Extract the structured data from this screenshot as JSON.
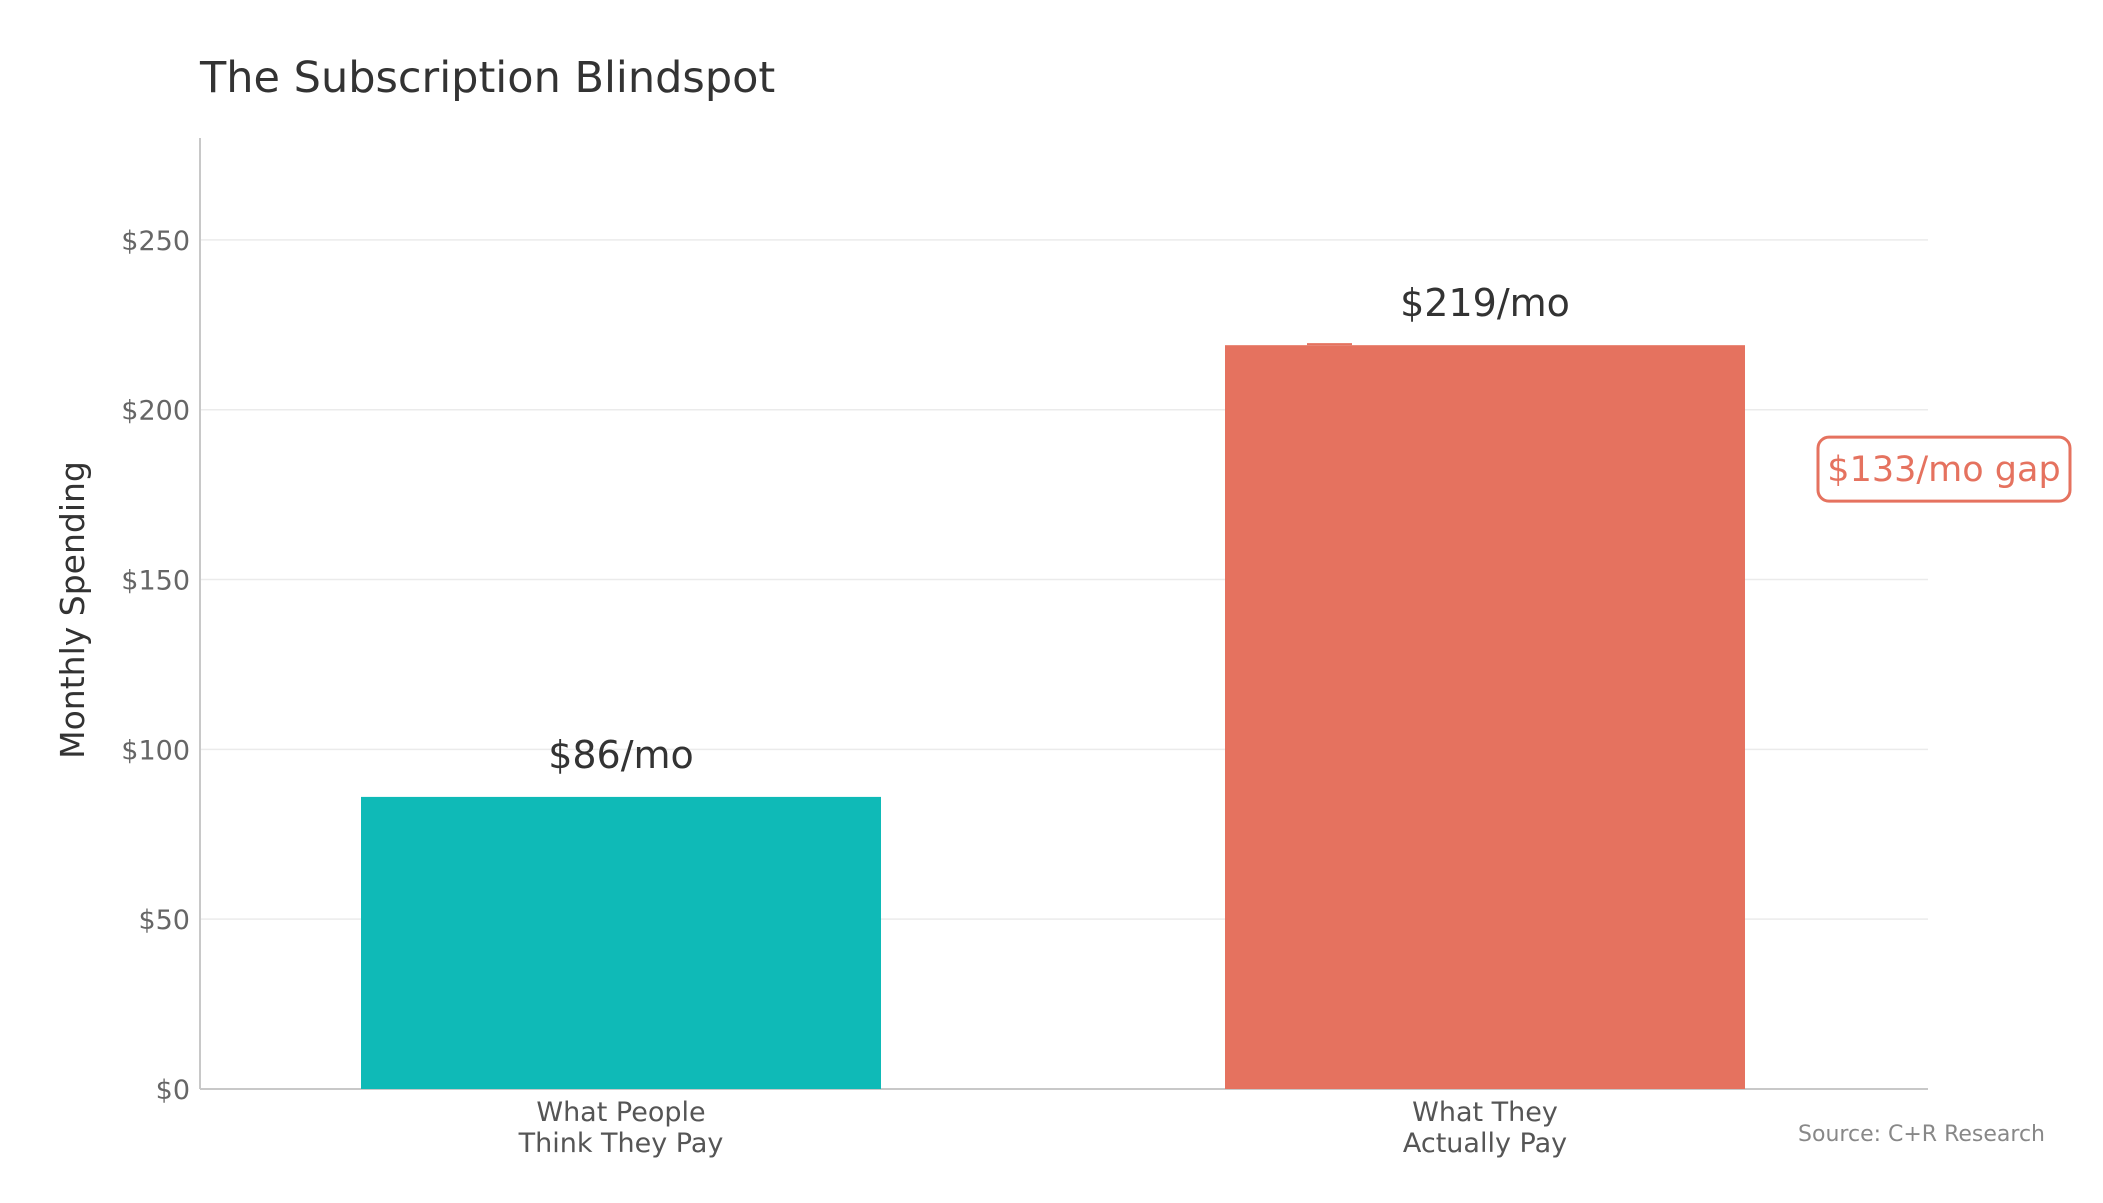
{
  "chart_data": {
    "type": "bar",
    "title": "The Subscription Blindspot",
    "xlabel": "",
    "ylabel": "Monthly Spending",
    "ylim": [
      0,
      280
    ],
    "yticks": [
      {
        "value": 0,
        "label": "$0"
      },
      {
        "value": 50,
        "label": "$50"
      },
      {
        "value": 100,
        "label": "$100"
      },
      {
        "value": 150,
        "label": "$150"
      },
      {
        "value": 200,
        "label": "$200"
      },
      {
        "value": 250,
        "label": "$250"
      }
    ],
    "categories": [
      [
        "What People",
        "Think They Pay"
      ],
      [
        "What They",
        "Actually Pay"
      ]
    ],
    "values": [
      86,
      219
    ],
    "data_labels": [
      "$86/mo",
      "$219/mo"
    ],
    "bar_colors": [
      "#0fbab7",
      "#e5725f"
    ],
    "grid": true,
    "legend": "none",
    "annotation": {
      "text": "$133/mo gap",
      "value": 133,
      "color": "#e5725f"
    },
    "source": "Source: C+R Research"
  }
}
